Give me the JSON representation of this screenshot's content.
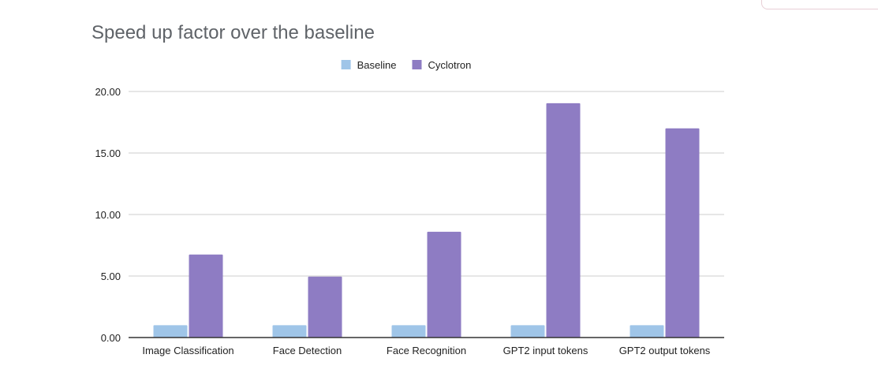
{
  "chart_data": {
    "type": "bar",
    "title": "Speed up factor over the baseline",
    "xlabel": "",
    "ylabel": "",
    "ylim": [
      0,
      20
    ],
    "yticks": [
      "0.00",
      "5.00",
      "10.00",
      "15.00",
      "20.00"
    ],
    "legend_position": "top-center",
    "grid": true,
    "categories": [
      "Image Classification",
      "Face Detection",
      "Face Recognition",
      "GPT2 input tokens",
      "GPT2 output tokens"
    ],
    "series": [
      {
        "name": "Baseline",
        "color": "#9fc5e8",
        "values": [
          1,
          1,
          1,
          1,
          1
        ]
      },
      {
        "name": "Cyclotron",
        "color": "#8e7cc3",
        "values": [
          6.75,
          4.95,
          8.6,
          19.05,
          17.0
        ]
      }
    ]
  }
}
